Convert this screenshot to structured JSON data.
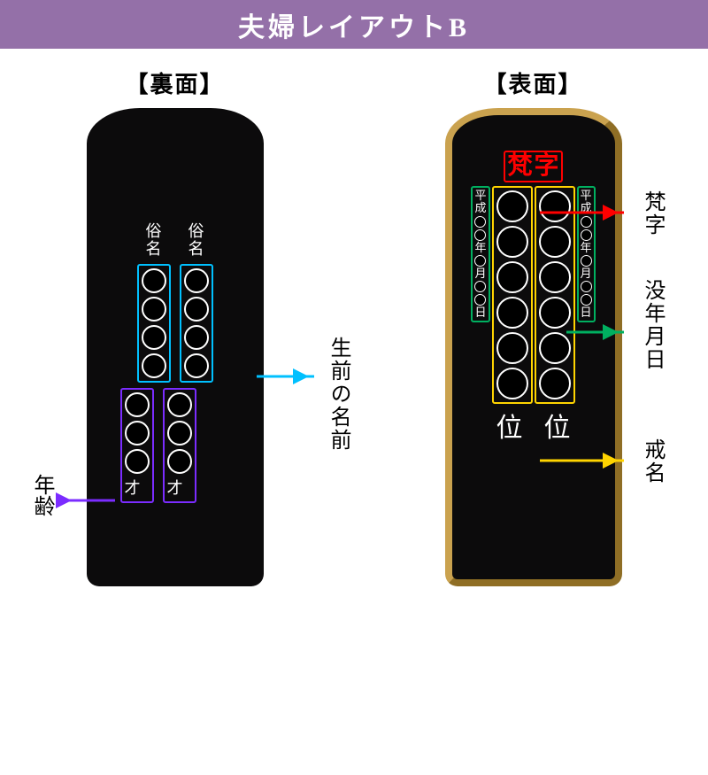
{
  "header": {
    "title": "夫婦レイアウトB",
    "bg": "#9470a8",
    "fg": "#ffffff"
  },
  "back": {
    "title": "【裏面】",
    "zokumyo": "俗名",
    "sai": "才",
    "tablet_bg": "#0c0b0c"
  },
  "front": {
    "title": "【表面】",
    "bonji": [
      "梵",
      "字"
    ],
    "kurai": "位",
    "date_seq": [
      "平",
      "成",
      "○",
      "○",
      "年",
      "○",
      "月",
      "○",
      "○",
      "日"
    ],
    "tablet_bg": "#0c0b0c",
    "border": "#caa24f"
  },
  "labels": {
    "nenrei": "年齢",
    "seizen": "生前の名前",
    "bonji_l": "梵字",
    "botsu": "没年月日",
    "kaimyo": "戒名"
  },
  "colors": {
    "cyan": "#00c0ff",
    "purple": "#7b2cff",
    "red": "#ff0000",
    "yellow": "#ffd400",
    "green": "#00b060"
  }
}
